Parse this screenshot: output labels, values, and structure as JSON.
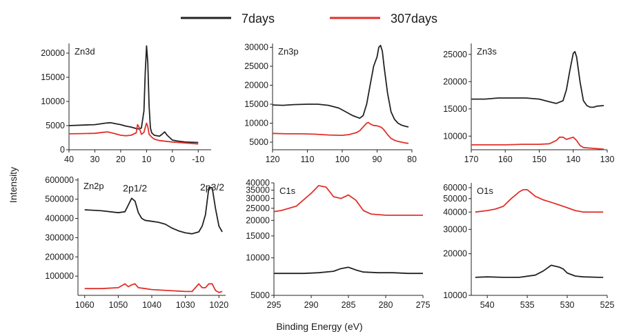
{
  "legend": {
    "series": [
      {
        "name": "7days",
        "color": "#222222"
      },
      {
        "name": "307days",
        "color": "#e0302a"
      }
    ]
  },
  "xlabel": "Binding Energy (eV)",
  "ylabel": "Intensity",
  "chart_data": [
    {
      "id": "zn3d",
      "type": "line",
      "title": "Zn3d",
      "xlim": [
        40,
        -15
      ],
      "ylim": [
        0,
        22000
      ],
      "yscale": "linear",
      "xticks": [
        40,
        30,
        20,
        10,
        0,
        -10
      ],
      "yticks": [
        0,
        5000,
        10000,
        15000,
        20000
      ],
      "series": [
        {
          "name": "7days",
          "x": [
            40,
            35,
            30,
            26,
            24,
            22,
            20,
            18,
            16,
            14,
            13,
            12,
            11,
            10.5,
            10,
            9.5,
            9,
            8.5,
            8,
            7,
            5,
            4,
            3,
            2,
            1,
            0,
            -2,
            -5,
            -10
          ],
          "y": [
            5000,
            5100,
            5200,
            5500,
            5600,
            5400,
            5200,
            4900,
            4700,
            4400,
            4300,
            4500,
            8000,
            16000,
            21500,
            18000,
            9000,
            4500,
            3500,
            3000,
            2800,
            3200,
            3700,
            3000,
            2500,
            2000,
            1800,
            1600,
            1500
          ]
        },
        {
          "name": "307days",
          "x": [
            40,
            35,
            30,
            27,
            25,
            22,
            20,
            18,
            16,
            14,
            13.5,
            13,
            12,
            11,
            10.5,
            10,
            9.5,
            9,
            8,
            7,
            5,
            0,
            -5,
            -10
          ],
          "y": [
            3300,
            3350,
            3400,
            3600,
            3700,
            3300,
            3000,
            2900,
            3000,
            3500,
            5200,
            4800,
            3200,
            3600,
            4600,
            5500,
            4800,
            3200,
            2600,
            2200,
            1900,
            1600,
            1400,
            1200
          ]
        }
      ]
    },
    {
      "id": "zn3p",
      "type": "line",
      "title": "Zn3p",
      "xlim": [
        120,
        80
      ],
      "ylim": [
        3000,
        31000
      ],
      "yscale": "linear",
      "xticks": [
        120,
        110,
        100,
        90,
        80
      ],
      "yticks": [
        5000,
        10000,
        15000,
        20000,
        25000,
        30000
      ],
      "series": [
        {
          "name": "7days",
          "x": [
            120,
            117,
            114,
            110,
            107,
            104,
            101,
            99,
            97,
            95,
            94,
            93,
            92,
            91,
            90,
            89.5,
            89,
            88.5,
            88,
            87,
            86,
            85,
            84,
            83,
            82,
            81
          ],
          "y": [
            14800,
            14700,
            14900,
            15000,
            15000,
            14700,
            14000,
            13000,
            12000,
            11300,
            12000,
            15000,
            20000,
            25000,
            27500,
            30000,
            30500,
            29000,
            25000,
            18000,
            13000,
            11000,
            10000,
            9500,
            9200,
            9000
          ]
        },
        {
          "name": "307days",
          "x": [
            120,
            116,
            112,
            108,
            104,
            100,
            98,
            96,
            95,
            94,
            93,
            92.5,
            92,
            91,
            90,
            89,
            88.5,
            88,
            87,
            86,
            85,
            84,
            83,
            82,
            81
          ],
          "y": [
            7300,
            7200,
            7200,
            7100,
            6900,
            6800,
            7000,
            7500,
            8000,
            9000,
            10000,
            10200,
            9800,
            9400,
            9300,
            9000,
            8700,
            8200,
            7000,
            6000,
            5500,
            5200,
            5000,
            4800,
            4700
          ]
        }
      ]
    },
    {
      "id": "zn3s",
      "type": "line",
      "title": "Zn3s",
      "xlim": [
        170,
        130
      ],
      "ylim": [
        7500,
        27000
      ],
      "yscale": "linear",
      "xticks": [
        170,
        160,
        150,
        140,
        130
      ],
      "yticks": [
        10000,
        15000,
        20000,
        25000
      ],
      "series": [
        {
          "name": "7days",
          "x": [
            170,
            166,
            162,
            158,
            154,
            150,
            147,
            145,
            143,
            142,
            141,
            140,
            139.5,
            139,
            138,
            137,
            136,
            135,
            134,
            133,
            131
          ],
          "y": [
            16800,
            16800,
            17000,
            17000,
            17000,
            16800,
            16300,
            16000,
            16500,
            18500,
            22000,
            25200,
            25500,
            24500,
            20000,
            16500,
            15600,
            15300,
            15300,
            15500,
            15600
          ]
        },
        {
          "name": "307days",
          "x": [
            170,
            165,
            160,
            155,
            150,
            147,
            145,
            144,
            143,
            142,
            141,
            140,
            139,
            138,
            137,
            135,
            133,
            131
          ],
          "y": [
            8400,
            8400,
            8400,
            8500,
            8500,
            8600,
            9200,
            9800,
            9800,
            9400,
            9600,
            9800,
            9200,
            8300,
            7900,
            7800,
            7700,
            7600
          ]
        }
      ]
    },
    {
      "id": "zn2p",
      "type": "line",
      "title": "Zn2p",
      "xlim": [
        1062,
        1018
      ],
      "ylim": [
        0,
        610000
      ],
      "yscale": "linear",
      "xticks": [
        1060,
        1050,
        1040,
        1030,
        1020
      ],
      "yticks": [
        100000,
        200000,
        300000,
        400000,
        500000,
        600000
      ],
      "annotations": [
        {
          "text": "2p1/2",
          "x": 1045,
          "y": 540000
        },
        {
          "text": "2p3/2",
          "x": 1022,
          "y": 545000
        }
      ],
      "series": [
        {
          "name": "7days",
          "x": [
            1060,
            1055,
            1050,
            1048,
            1047,
            1046,
            1045,
            1044,
            1043,
            1042,
            1040,
            1038,
            1036,
            1034,
            1032,
            1030,
            1028,
            1026,
            1025,
            1024,
            1023,
            1022,
            1021,
            1020,
            1019
          ],
          "y": [
            445000,
            440000,
            430000,
            435000,
            470000,
            505000,
            490000,
            430000,
            400000,
            390000,
            385000,
            380000,
            370000,
            350000,
            335000,
            325000,
            320000,
            330000,
            360000,
            420000,
            560000,
            560000,
            450000,
            360000,
            330000
          ]
        },
        {
          "name": "307days",
          "x": [
            1060,
            1055,
            1050,
            1049,
            1048,
            1047,
            1046,
            1045,
            1044,
            1042,
            1040,
            1035,
            1030,
            1028,
            1027,
            1026,
            1025,
            1024,
            1023,
            1022,
            1021,
            1020,
            1019
          ],
          "y": [
            35000,
            35000,
            40000,
            50000,
            60000,
            45000,
            55000,
            60000,
            40000,
            35000,
            30000,
            25000,
            20000,
            20000,
            40000,
            60000,
            40000,
            40000,
            60000,
            60000,
            25000,
            15000,
            20000
          ]
        }
      ]
    },
    {
      "id": "c1s",
      "type": "line",
      "title": "C1s",
      "xlim": [
        295,
        275
      ],
      "ylim": [
        5000,
        40000
      ],
      "yscale": "log",
      "xticks": [
        295,
        290,
        285,
        280,
        275
      ],
      "yticks": [
        5000,
        10000,
        15000,
        20000,
        25000,
        30000,
        35000,
        40000
      ],
      "series": [
        {
          "name": "7days",
          "x": [
            295,
            293,
            291,
            289,
            287,
            286,
            285,
            284,
            283,
            281,
            279,
            277,
            275
          ],
          "y": [
            7500,
            7500,
            7500,
            7600,
            7800,
            8200,
            8400,
            8000,
            7700,
            7600,
            7600,
            7500,
            7500
          ]
        },
        {
          "name": "307days",
          "x": [
            295,
            294,
            292,
            290,
            289,
            288,
            287,
            286,
            285,
            284,
            283,
            282,
            280,
            278,
            276,
            275
          ],
          "y": [
            23500,
            24000,
            26000,
            33000,
            38000,
            37000,
            31000,
            30000,
            32000,
            29000,
            24000,
            22500,
            22000,
            22000,
            22000,
            22000
          ]
        }
      ]
    },
    {
      "id": "o1s",
      "type": "line",
      "title": "O1s",
      "xlim": [
        542,
        525
      ],
      "ylim": [
        10000,
        65000
      ],
      "yscale": "log",
      "xticks": [
        540,
        535,
        530,
        525
      ],
      "yticks": [
        10000,
        20000,
        30000,
        40000,
        50000,
        60000
      ],
      "series": [
        {
          "name": "7days",
          "x": [
            541.5,
            540,
            538,
            536,
            534,
            533,
            532,
            531,
            530.5,
            530,
            529,
            528,
            526,
            525.5
          ],
          "y": [
            13500,
            13600,
            13500,
            13500,
            14000,
            15000,
            16500,
            16000,
            15500,
            14500,
            13800,
            13600,
            13500,
            13500
          ]
        },
        {
          "name": "307days",
          "x": [
            541.5,
            540,
            539,
            538,
            537,
            536,
            535.5,
            535,
            534.5,
            534,
            533,
            532,
            531,
            530,
            529,
            528,
            527,
            526,
            525.5
          ],
          "y": [
            40000,
            41000,
            42000,
            44000,
            50000,
            56000,
            58000,
            58000,
            55000,
            52000,
            49000,
            47000,
            45000,
            43000,
            41000,
            40000,
            40000,
            40000,
            40000
          ]
        }
      ]
    }
  ]
}
